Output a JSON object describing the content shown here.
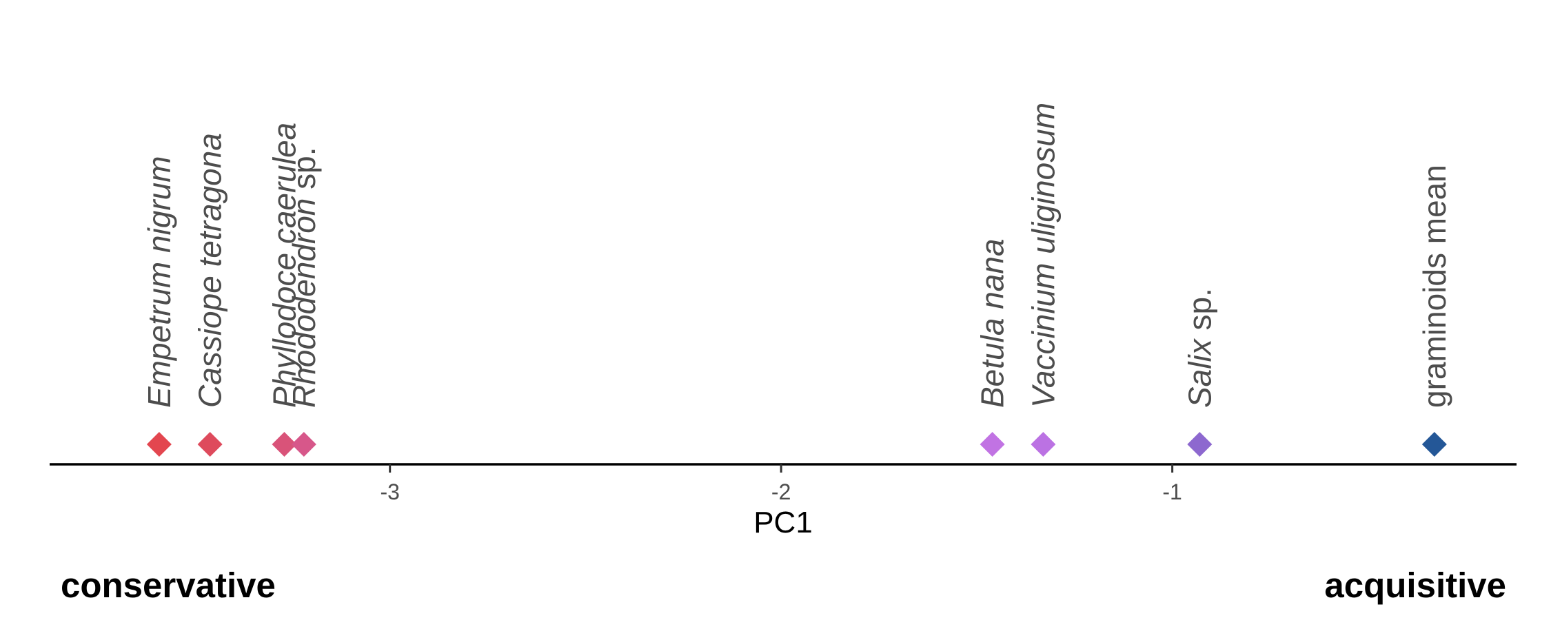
{
  "chart_data": {
    "type": "scatter",
    "xlabel": "PC1",
    "xlim": [
      -3.87,
      -0.12
    ],
    "x_ticks": [
      {
        "value": -3,
        "label": "-3"
      },
      {
        "value": -2,
        "label": "-2"
      },
      {
        "value": -1,
        "label": "-1"
      }
    ],
    "marker": "diamond",
    "points": [
      {
        "name": "Empetrum nigrum",
        "italic": "Empetrum nigrum",
        "rest": "",
        "x": -3.59,
        "color": "#e3464f"
      },
      {
        "name": "Cassiope tetragona",
        "italic": "Cassiope tetragona",
        "rest": "",
        "x": -3.46,
        "color": "#de4a5c"
      },
      {
        "name": "Phyllodoce caerulea",
        "italic": "Phyllodoce caerulea",
        "rest": "",
        "x": -3.27,
        "color": "#d95379"
      },
      {
        "name": "Rhododendron sp.",
        "italic": "Rhododendron",
        "rest": " sp.",
        "x": -3.22,
        "color": "#d7578a"
      },
      {
        "name": "Betula nana",
        "italic": "Betula nana",
        "rest": "",
        "x": -1.46,
        "color": "#c173e3"
      },
      {
        "name": "Vaccinium uliginosum",
        "italic": "Vaccinium uliginosum",
        "rest": "",
        "x": -1.33,
        "color": "#bb72e3"
      },
      {
        "name": "Salix sp.",
        "italic": "Salix",
        "rest": " sp.",
        "x": -0.93,
        "color": "#8d68cf"
      },
      {
        "name": "graminoids mean",
        "italic": "",
        "rest": "graminoids mean",
        "x": -0.33,
        "color": "#245797"
      }
    ],
    "grid": false,
    "legend": "none"
  },
  "annotations": {
    "left": "conservative",
    "right": "acquisitive"
  }
}
